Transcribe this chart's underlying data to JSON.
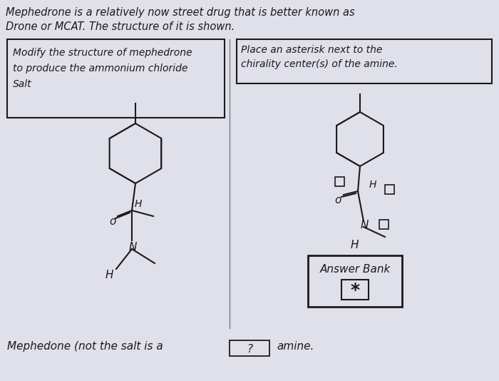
{
  "bg_color": "#d8d8e8",
  "paper_color": "#e0e0ea",
  "title_line1": "Mephedrone is a relatively now street drug that is better known as",
  "title_line2": "Drone or MCAT. The structure of it is shown.",
  "box1_text": [
    "Modify the structure of mephedrone",
    "to produce the ammonium chloride",
    "Salt"
  ],
  "box2_text": [
    "Place an asterisk next to the",
    "chirality center(s) of the amine."
  ],
  "bottom_text": "Mephedone (not the salt is a",
  "bottom_end": "amine.",
  "answer_bank_label": "Answer Bank",
  "answer_bank_symbol": "*",
  "font_color": "#1a1a1a"
}
